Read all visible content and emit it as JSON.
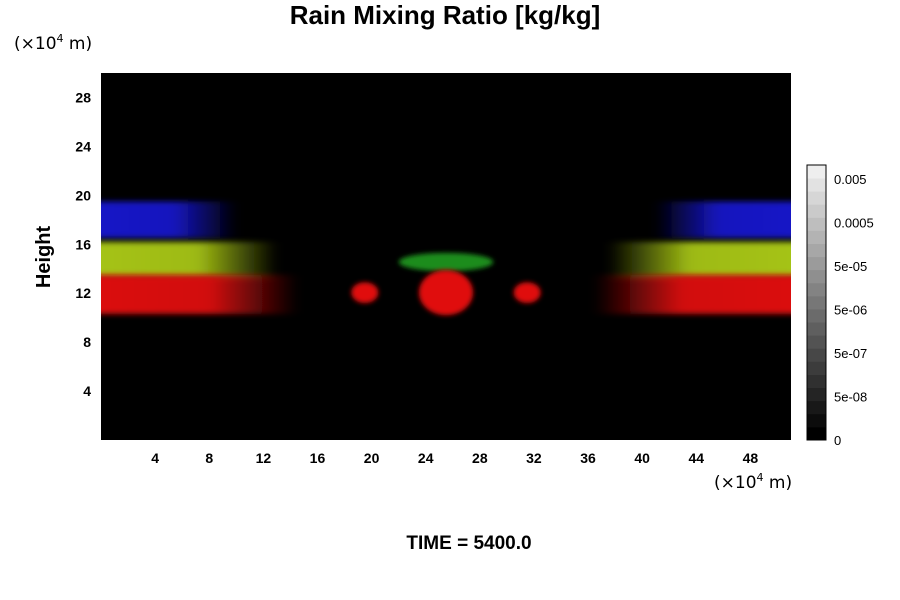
{
  "chart_data": {
    "type": "heatmap",
    "title": "Rain Mixing Ratio [kg/kg]",
    "ylabel": "Height",
    "x_unit": {
      "prefix": "(×10",
      "exp": "4",
      "suffix": " m)"
    },
    "y_unit": {
      "prefix": "(×10",
      "exp": "4",
      "suffix": " m)"
    },
    "xlim": [
      0,
      51
    ],
    "ylim": [
      0,
      30
    ],
    "x_ticks": [
      4,
      8,
      12,
      16,
      20,
      24,
      28,
      32,
      36,
      40,
      44,
      48
    ],
    "y_ticks": [
      4,
      8,
      12,
      16,
      20,
      24,
      28
    ],
    "background_color": "#000000",
    "colorbar": {
      "labels": [
        "0.005",
        "0.0005",
        "5e-05",
        "5e-06",
        "5e-07",
        "5e-08",
        "0"
      ],
      "label_values": [
        0.005,
        0.0005,
        5e-05,
        5e-06,
        5e-07,
        5e-08,
        0
      ],
      "levels": 21,
      "bottom_color": "#000000",
      "top_color": "#eeeeee"
    },
    "features": [
      {
        "name": "left-blue-band",
        "color": "#1616c8",
        "x_range": [
          0,
          10
        ],
        "y_range": [
          16.5,
          19.5
        ]
      },
      {
        "name": "left-yellow-band",
        "color": "#a6c414",
        "x_range": [
          0,
          13
        ],
        "y_range": [
          13.2,
          16.2
        ]
      },
      {
        "name": "left-red-band",
        "color": "#dc1010",
        "x_range": [
          0,
          14.5
        ],
        "y_range": [
          10.3,
          13.5
        ]
      },
      {
        "name": "right-blue-band",
        "color": "#1616c8",
        "x_range": [
          41,
          51
        ],
        "y_range": [
          16.5,
          19.5
        ]
      },
      {
        "name": "right-yellow-band",
        "color": "#a6c414",
        "x_range": [
          37.5,
          51
        ],
        "y_range": [
          13.2,
          16.2
        ]
      },
      {
        "name": "right-red-band",
        "color": "#dc1010",
        "x_range": [
          36.5,
          51
        ],
        "y_range": [
          10.3,
          13.5
        ]
      },
      {
        "name": "center-green-arc",
        "color": "#1e8c1e",
        "x_range": [
          22,
          29
        ],
        "y_range": [
          13.8,
          15.3
        ]
      },
      {
        "name": "center-red-core",
        "color": "#e01010",
        "x_range": [
          23.5,
          27.5
        ],
        "y_range": [
          10.2,
          13.9
        ]
      },
      {
        "name": "left-red-blob",
        "color": "#e01010",
        "x_range": [
          18.5,
          20.5
        ],
        "y_range": [
          11.2,
          12.9
        ]
      },
      {
        "name": "right-red-blob",
        "color": "#e01010",
        "x_range": [
          30.5,
          32.5
        ],
        "y_range": [
          11.2,
          12.9
        ]
      }
    ]
  },
  "footer": {
    "time_label": "TIME = 5400.0"
  }
}
